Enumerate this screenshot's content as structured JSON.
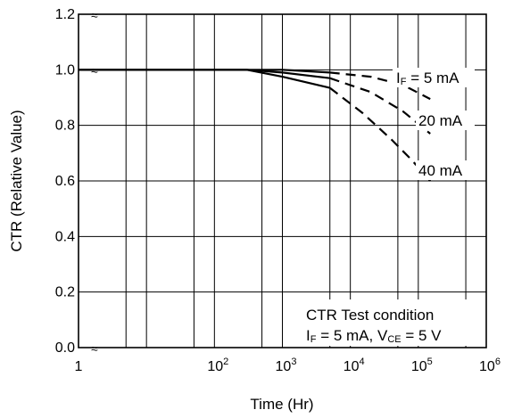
{
  "chart_data": {
    "type": "line",
    "title": "",
    "xlabel": "Time  (Hr)",
    "ylabel": "CTR (Relative Value)",
    "x_scale": "log",
    "xlim": [
      1,
      1000000
    ],
    "ylim": [
      0.0,
      1.2
    ],
    "grid": true,
    "x_ticks": [
      {
        "value": 1,
        "base": "1",
        "exp": ""
      },
      {
        "value": 100,
        "base": "10",
        "exp": "2"
      },
      {
        "value": 1000,
        "base": "10",
        "exp": "3"
      },
      {
        "value": 10000,
        "base": "10",
        "exp": "4"
      },
      {
        "value": 100000,
        "base": "10",
        "exp": "5"
      },
      {
        "value": 1000000,
        "base": "10",
        "exp": "6"
      }
    ],
    "y_ticks": [
      "0.0",
      "0.2",
      "0.4",
      "0.6",
      "0.8",
      "1.0",
      "1.2"
    ],
    "series": [
      {
        "label_main": "I",
        "label_sub": "F",
        "label_rest": " = 5 mA",
        "solid": {
          "x": [
            1,
            100,
            1000,
            5000
          ],
          "y": [
            1.0,
            1.0,
            1.0,
            0.99
          ]
        },
        "dashed": {
          "x": [
            5000,
            20000,
            60000,
            150000
          ],
          "y": [
            0.99,
            0.975,
            0.945,
            0.895
          ]
        }
      },
      {
        "label_main": "",
        "label_sub": "",
        "label_rest": "20 mA",
        "solid": {
          "x": [
            1,
            100,
            300,
            1000,
            5000
          ],
          "y": [
            1.0,
            1.0,
            1.0,
            0.99,
            0.97
          ]
        },
        "dashed": {
          "x": [
            5000,
            20000,
            60000,
            150000
          ],
          "y": [
            0.97,
            0.92,
            0.85,
            0.77
          ]
        }
      },
      {
        "label_main": "",
        "label_sub": "",
        "label_rest": "40 mA",
        "solid": {
          "x": [
            1,
            100,
            300,
            1000,
            5000
          ],
          "y": [
            1.0,
            1.0,
            1.0,
            0.975,
            0.935
          ]
        },
        "dashed": {
          "x": [
            5000,
            15000,
            40000,
            80000,
            150000
          ],
          "y": [
            0.935,
            0.845,
            0.75,
            0.675,
            0.6
          ]
        }
      }
    ],
    "annotation": {
      "line1": "CTR Test condition",
      "line2_a": "I",
      "line2_a_sub": "F",
      "line2_b": " = 5 mA, V",
      "line2_b_sub": "CE",
      "line2_c": " = 5 V"
    },
    "axis_break_marker": "≈"
  }
}
